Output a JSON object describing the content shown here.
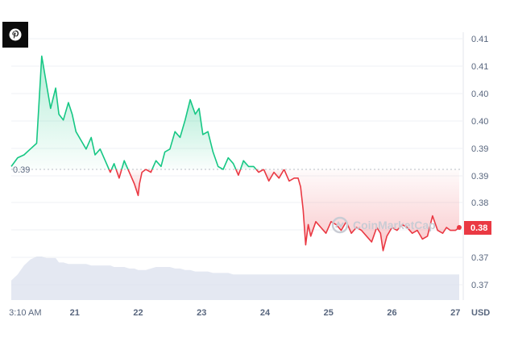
{
  "pin_icon": "pinterest-icon",
  "watermark": {
    "text": "CoinMarketCap",
    "icon": "coinmarketcap-logo"
  },
  "colors": {
    "up": "#16c784",
    "down": "#ea3943",
    "volume": "#dbe0ee",
    "grid": "#eff2f5",
    "axis_text": "#58667e"
  },
  "chart_data": {
    "type": "line",
    "title": "",
    "xlabel": "",
    "ylabel": "",
    "currency": "USD",
    "reference_price": 0.39,
    "reference_label": "0.39",
    "current_price_label": "0.38",
    "x_tick_labels": [
      "3:10 AM",
      "21",
      "22",
      "23",
      "24",
      "25",
      "26",
      "27"
    ],
    "y_tick_labels": [
      "0.41",
      "0.41",
      "0.40",
      "0.40",
      "0.39",
      "0.39",
      "0.38",
      "0.38",
      "0.37",
      "0.37"
    ],
    "ylim": [
      0.3675,
      0.4125
    ],
    "x": [
      20.0,
      20.1,
      20.2,
      20.3,
      20.4,
      20.48,
      20.55,
      20.62,
      20.7,
      20.75,
      20.82,
      20.9,
      20.96,
      21.02,
      21.1,
      21.18,
      21.26,
      21.32,
      21.4,
      21.48,
      21.56,
      21.62,
      21.7,
      21.78,
      21.86,
      21.94,
      22.0,
      22.02,
      22.06,
      22.12,
      22.2,
      22.28,
      22.36,
      22.42,
      22.5,
      22.58,
      22.66,
      22.74,
      22.82,
      22.9,
      22.96,
      23.02,
      23.1,
      23.18,
      23.26,
      23.34,
      23.42,
      23.5,
      23.58,
      23.66,
      23.74,
      23.82,
      23.9,
      23.98,
      24.06,
      24.14,
      24.22,
      24.3,
      24.38,
      24.46,
      24.52,
      24.56,
      24.6,
      24.64,
      24.68,
      24.72,
      24.8,
      24.88,
      24.96,
      25.04,
      25.12,
      25.2,
      25.28,
      25.36,
      25.44,
      25.52,
      25.6,
      25.68,
      25.76,
      25.82,
      25.86,
      25.92,
      26.0,
      26.08,
      26.16,
      26.24,
      26.32,
      26.4,
      26.48,
      26.56,
      26.64,
      26.72,
      26.8,
      26.86,
      26.92,
      27.0,
      27.06
    ],
    "series": [
      {
        "values": [
          0.3905,
          0.392,
          0.3925,
          0.3935,
          0.3945,
          0.4095,
          0.405,
          0.4005,
          0.404,
          0.3995,
          0.3985,
          0.4015,
          0.3995,
          0.3965,
          0.395,
          0.3935,
          0.3955,
          0.3925,
          0.3935,
          0.3915,
          0.3895,
          0.391,
          0.3885,
          0.3915,
          0.3895,
          0.3875,
          0.3855,
          0.3875,
          0.3895,
          0.39,
          0.3895,
          0.3915,
          0.3905,
          0.393,
          0.3935,
          0.3965,
          0.3955,
          0.3985,
          0.402,
          0.3995,
          0.4005,
          0.396,
          0.3965,
          0.393,
          0.3905,
          0.39,
          0.392,
          0.391,
          0.389,
          0.3915,
          0.3905,
          0.3905,
          0.3895,
          0.39,
          0.388,
          0.3895,
          0.3885,
          0.39,
          0.388,
          0.3885,
          0.3885,
          0.387,
          0.383,
          0.377,
          0.3805,
          0.3785,
          0.381,
          0.38,
          0.379,
          0.381,
          0.3805,
          0.3795,
          0.381,
          0.379,
          0.38,
          0.3795,
          0.3785,
          0.3775,
          0.38,
          0.379,
          0.376,
          0.3785,
          0.38,
          0.3795,
          0.3805,
          0.38,
          0.379,
          0.3795,
          0.378,
          0.3785,
          0.382,
          0.3795,
          0.379,
          0.38,
          0.3795,
          0.3795,
          0.38
        ]
      },
      {
        "name": "",
        "values": [
          0.0,
          0.02,
          0.05,
          0.07,
          0.08,
          0.08,
          0.075,
          0.075,
          0.075,
          0.06,
          0.06,
          0.055,
          0.055,
          0.055,
          0.055,
          0.055,
          0.05,
          0.05,
          0.05,
          0.05,
          0.05,
          0.045,
          0.045,
          0.045,
          0.04,
          0.04,
          0.035,
          0.035,
          0.035,
          0.035,
          0.04,
          0.045,
          0.045,
          0.045,
          0.045,
          0.04,
          0.04,
          0.035,
          0.035,
          0.03,
          0.03,
          0.03,
          0.03,
          0.025,
          0.025,
          0.025,
          0.025,
          0.02,
          0.02,
          0.02,
          0.02,
          0.02,
          0.02,
          0.02,
          0.02,
          0.02,
          0.02,
          0.02,
          0.02,
          0.02,
          0.02,
          0.02,
          0.02,
          0.02,
          0.02,
          0.02,
          0.02,
          0.02,
          0.02,
          0.02,
          0.02,
          0.02,
          0.02,
          0.02,
          0.02,
          0.02,
          0.02,
          0.02,
          0.02,
          0.02,
          0.02,
          0.02,
          0.02,
          0.02,
          0.02,
          0.02,
          0.02,
          0.02,
          0.02,
          0.02,
          0.02,
          0.02,
          0.02,
          0.02,
          0.02,
          0.02,
          0.02
        ]
      }
    ]
  }
}
